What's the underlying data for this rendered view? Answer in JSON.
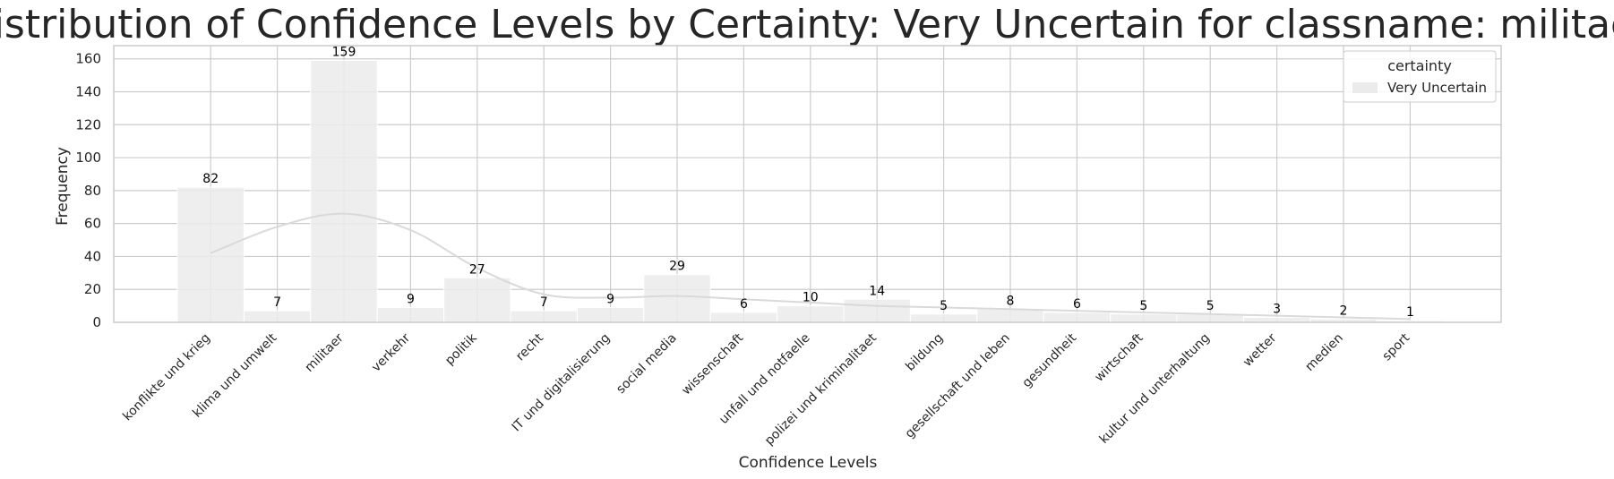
{
  "chart_data": {
    "type": "bar",
    "title": "Distribution of Confidence Levels by Certainty: Very Uncertain for classname: militaer",
    "xlabel": "Confidence Levels",
    "ylabel": "Frequency",
    "categories": [
      "konflikte und krieg",
      "klima und umwelt",
      "militaer",
      "verkehr",
      "politik",
      "recht",
      "IT und digitalisierung",
      "social media",
      "wissenschaft",
      "unfall und notfaelle",
      "polizei und kriminalitaet",
      "bildung",
      "gesellschaft und leben",
      "gesundheit",
      "wirtschaft",
      "kultur und unterhaltung",
      "wetter",
      "medien",
      "sport"
    ],
    "series": [
      {
        "name": "Very Uncertain",
        "values": [
          82,
          7,
          159,
          9,
          27,
          7,
          9,
          29,
          6,
          10,
          14,
          5,
          8,
          6,
          5,
          5,
          3,
          2,
          1
        ]
      }
    ],
    "kde": [
      42,
      58,
      66,
      56,
      33,
      17,
      15,
      16,
      14,
      12,
      10,
      9,
      8,
      7,
      6,
      5,
      4,
      3,
      2
    ],
    "ylim": [
      0,
      168
    ],
    "yticks": [
      0,
      20,
      40,
      60,
      80,
      100,
      120,
      140,
      160
    ],
    "grid": true,
    "legend": {
      "title": "certainty",
      "placement": "top-right"
    },
    "colors": {
      "bar": "#ebebeb",
      "kde": "#d9d9d9",
      "grid": "#cccccc",
      "axes": "#cccccc",
      "text": "#262626"
    }
  }
}
